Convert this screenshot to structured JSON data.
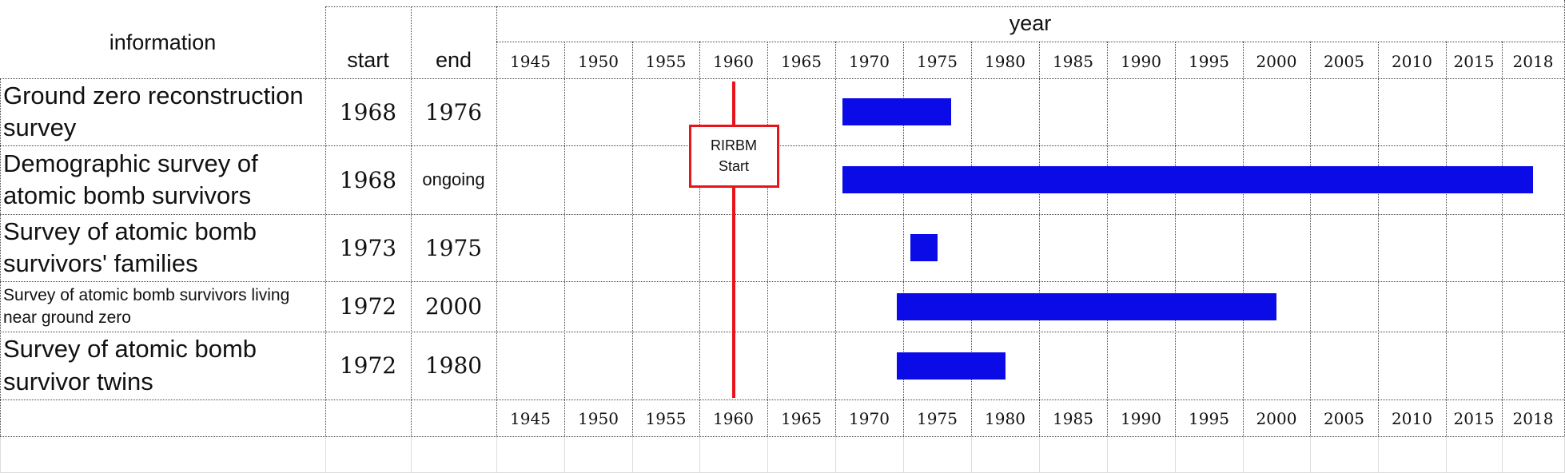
{
  "header": {
    "information": "information",
    "year": "year",
    "start": "start",
    "end": "end"
  },
  "years": [
    1945,
    1950,
    1955,
    1960,
    1965,
    1970,
    1975,
    1980,
    1985,
    1990,
    1995,
    2000,
    2005,
    2010,
    2015,
    2018
  ],
  "rows": [
    {
      "information": "Ground zero reconstruction survey",
      "start": 1968,
      "end": 1976
    },
    {
      "information": "Demographic survey of atomic bomb survivors",
      "start": 1968,
      "end": "ongoing"
    },
    {
      "information": "Survey of atomic bomb survivors' families",
      "start": 1973,
      "end": 1975
    },
    {
      "information": "Survey of atomic bomb survivors living near ground zero",
      "start": 1972,
      "end": 2000
    },
    {
      "information": "Survey of atomic bomb survivor twins",
      "start": 1972,
      "end": 1980
    }
  ],
  "annotation": {
    "label": "RIRBM Start",
    "year": 1960
  }
}
